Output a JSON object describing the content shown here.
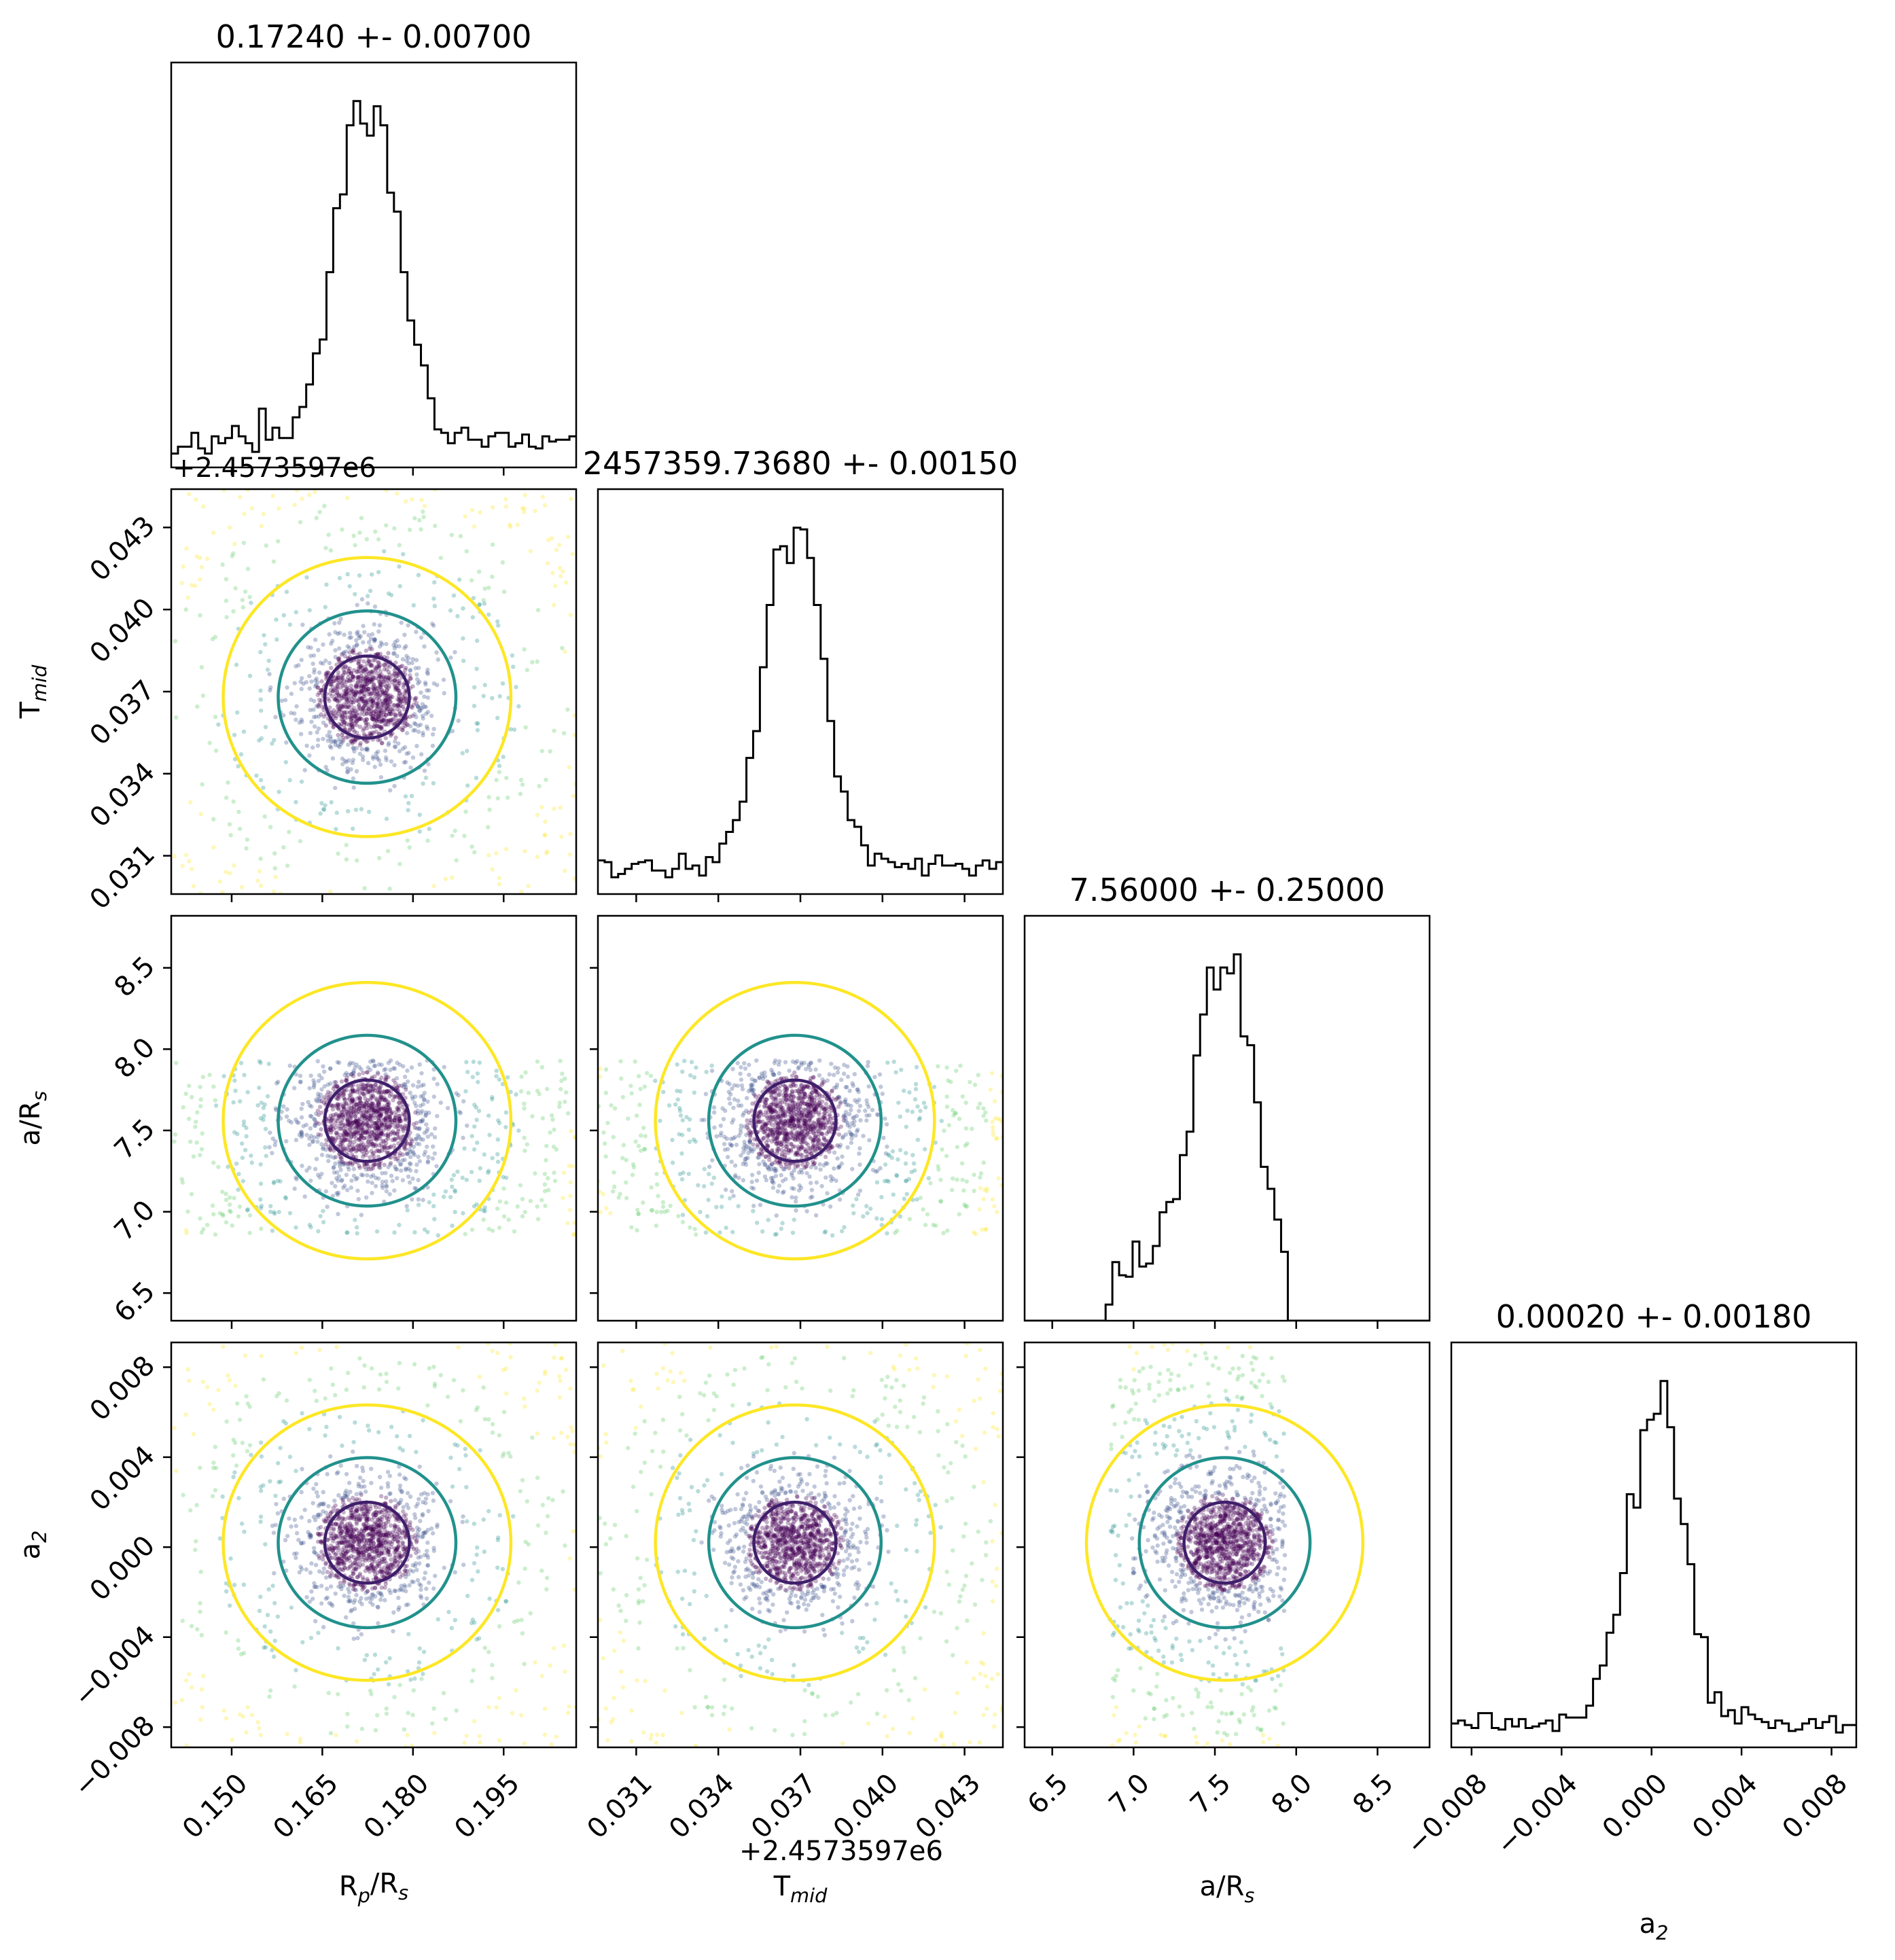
{
  "chart_data": {
    "type": "scatter",
    "plot_kind": "corner",
    "parameters": [
      {
        "key": "rp",
        "label": "R_p/R_s",
        "axis_label_main": "R",
        "axis_label_sub": "p",
        "axis_label_tail": "/R",
        "axis_label_sub2": "s",
        "title": "0.17240 +- 0.00700",
        "median": 0.1724,
        "sigma": 0.007,
        "range": [
          0.14,
          0.207
        ],
        "ticks": [
          0.15,
          0.165,
          0.18,
          0.195
        ],
        "tick_labels": [
          "0.150",
          "0.165",
          "0.180",
          "0.195"
        ],
        "offset_text": ""
      },
      {
        "key": "tmid",
        "label": "T_mid",
        "axis_label_main": "T",
        "axis_label_sub": "mid",
        "axis_label_tail": "",
        "axis_label_sub2": "",
        "title": "2457359.73680 +- 0.00150",
        "median": 0.0368,
        "sigma": 0.0015,
        "range": [
          0.0296,
          0.0444
        ],
        "ticks": [
          0.031,
          0.034,
          0.037,
          0.04,
          0.043
        ],
        "tick_labels": [
          "0.031",
          "0.034",
          "0.037",
          "0.040",
          "0.043"
        ],
        "offset_text": "+2.4573597e6"
      },
      {
        "key": "ars",
        "label": "a/R_s",
        "axis_label_main": "a/R",
        "axis_label_sub": "s",
        "axis_label_tail": "",
        "axis_label_sub2": "",
        "title": "7.56000 +- 0.25000",
        "median": 7.56,
        "sigma": 0.25,
        "range": [
          6.33,
          8.82
        ],
        "ticks": [
          6.5,
          7.0,
          7.5,
          8.0,
          8.5
        ],
        "tick_labels": [
          "6.5",
          "7.0",
          "7.5",
          "8.0",
          "8.5"
        ],
        "offset_text": "",
        "uniform_bounds": [
          6.85,
          7.93
        ]
      },
      {
        "key": "a2",
        "label": "a_2",
        "axis_label_main": "a",
        "axis_label_sub": "2",
        "axis_label_tail": "",
        "axis_label_sub2": "",
        "title": "0.00020 +- 0.00180",
        "median": 0.0002,
        "sigma": 0.0018,
        "range": [
          -0.0089,
          0.0091
        ],
        "ticks": [
          -0.008,
          -0.004,
          0.0,
          0.004,
          0.008
        ],
        "tick_labels": [
          "−0.008",
          "−0.004",
          "0.000",
          "0.004",
          "0.008"
        ],
        "offset_text": ""
      }
    ],
    "contour_levels": [
      "1-sigma",
      "2-sigma",
      "3-sigma"
    ],
    "colors": {
      "histogram": "#000000",
      "contour_inner": "#3f1f6b",
      "contour_mid": "#21918c",
      "contour_outer": "#fde725",
      "points": [
        "#440154",
        "#3b528b",
        "#21918c",
        "#5ec962",
        "#fde725"
      ]
    },
    "grid": false,
    "legend": "none"
  }
}
